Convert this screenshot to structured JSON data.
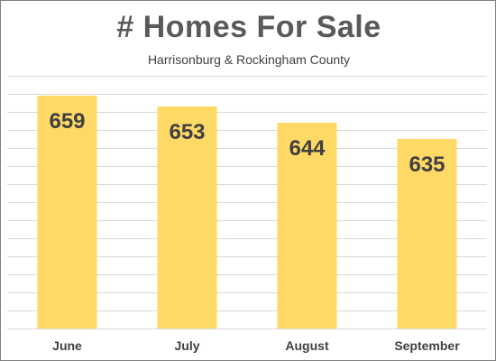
{
  "chart_data": {
    "type": "bar",
    "title": "# Homes For Sale",
    "subtitle": "Harrisonburg & Rockingham County",
    "xlabel": "",
    "ylabel": "",
    "categories": [
      "June",
      "July",
      "August",
      "September"
    ],
    "values": [
      659,
      653,
      644,
      635
    ],
    "data_labels": true,
    "ylim": [
      530,
      670
    ],
    "grid": true,
    "legend": "none",
    "colors": {
      "bar": "#ffd966",
      "text": "#404040",
      "title": "#595959",
      "grid": "#d9d9d9"
    }
  }
}
